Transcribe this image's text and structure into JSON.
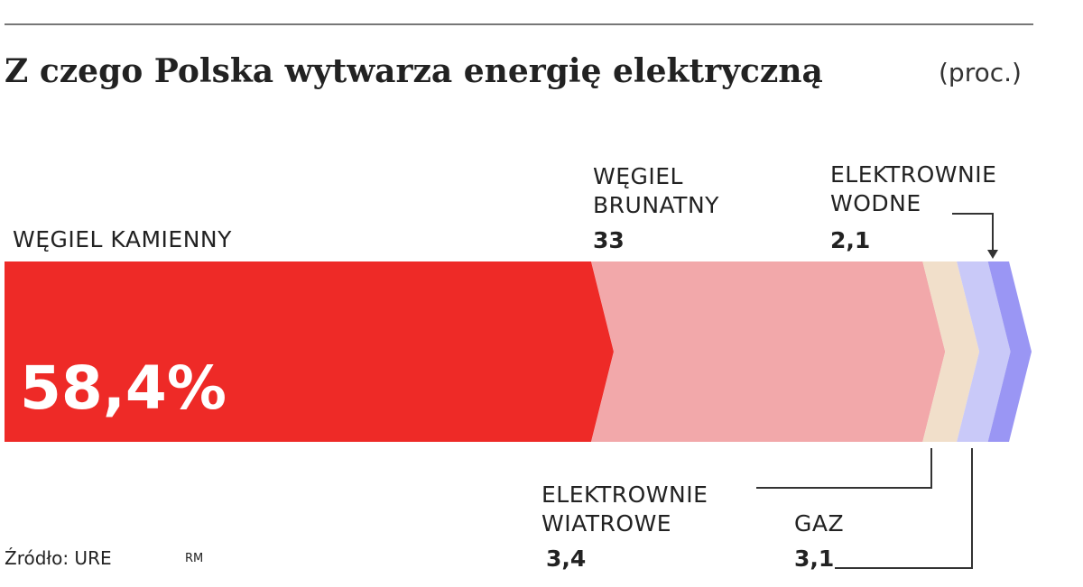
{
  "chart_data": {
    "type": "bar",
    "title": "Z czego Polska wytwarza energię elektryczną",
    "subtitle": "(proc.)",
    "categories": [
      "WĘGIEL KAMIENNY",
      "WĘGIEL BRUNATNY",
      "ELEKTROWNIE WIATROWE",
      "GAZ",
      "ELEKTROWNIE WODNE"
    ],
    "values": [
      58.4,
      33,
      3.4,
      3.1,
      2.1
    ],
    "value_labels": [
      "58,4%",
      "33",
      "3,4",
      "3,1",
      "2,1"
    ],
    "colors": [
      "#ee2a27",
      "#f2a8aa",
      "#f1dfca",
      "#c9c9f8",
      "#9a96f4"
    ],
    "source": "Źródło: URE",
    "credit": "RM"
  }
}
